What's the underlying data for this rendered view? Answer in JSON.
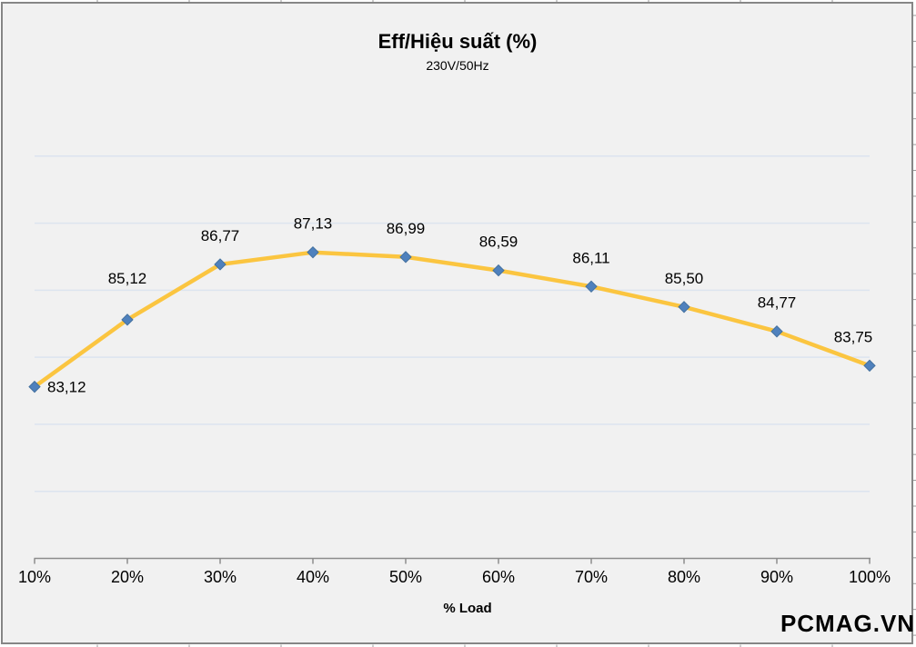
{
  "chart": {
    "title": "Eff/Hiệu suất (%)",
    "subtitle": "230V/50Hz",
    "x_axis_title": "% Load",
    "watermark": "PCMAG.VN"
  },
  "chart_data": {
    "type": "line",
    "title": "Eff/Hiệu suất (%)",
    "subtitle": "230V/50Hz",
    "xlabel": "% Load",
    "ylabel": "",
    "categories": [
      "10%",
      "20%",
      "30%",
      "40%",
      "50%",
      "60%",
      "70%",
      "80%",
      "90%",
      "100%"
    ],
    "values": [
      83.12,
      85.12,
      86.77,
      87.13,
      86.99,
      86.59,
      86.11,
      85.5,
      84.77,
      83.75
    ],
    "point_labels": [
      "83,12",
      "85,12",
      "86,77",
      "87,13",
      "86,99",
      "86,59",
      "86,11",
      "85,50",
      "84,77",
      "83,75"
    ],
    "series_name": "Eff/Hiệu suất (%) 230V/50Hz",
    "ylim": [
      78,
      92
    ],
    "gridline_step": 2,
    "grid": true,
    "legend_position": "none",
    "marker_shape": "diamond"
  },
  "colors": {
    "chart_background": "#F1F1F1",
    "chart_border": "#868686",
    "gridline": "#DCE4EF",
    "axis": "#8C8C8C",
    "worksheet_tick": "#9A9A9A",
    "series_line": "#FBC540",
    "marker_fill": "#4F81BD",
    "marker_stroke": "#44719F",
    "label_text": "#000000",
    "watermark_text": "rgba(255,255,255,0.92)"
  }
}
